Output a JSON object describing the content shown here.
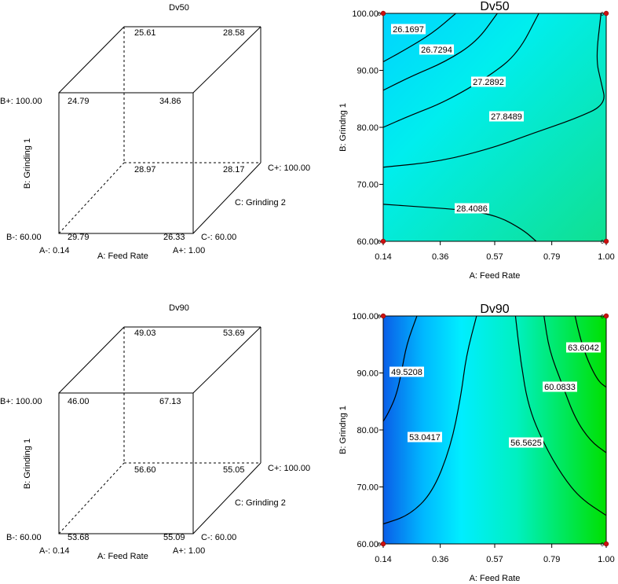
{
  "chart_data": [
    {
      "type": "cube",
      "title": "Dv50",
      "xlabel": "A: Feed Rate",
      "ylabel": "B: Grinding 1",
      "zlabel": "C: Grinding 2",
      "levels": {
        "a_minus": "A-: 0.14",
        "a_plus": "A+: 1.00",
        "b_minus": "B-: 60.00",
        "b_plus": "B+: 100.00",
        "c_minus": "C-: 60.00",
        "c_plus": "C+: 100.00"
      },
      "corners": {
        "a-b-c-": "29.79",
        "a+b-c-": "26.33",
        "a-b+c-": "24.79",
        "a+b+c-": "34.86",
        "a-b-c+": "28.97",
        "a+b-c+": "28.17",
        "a-b+c+": "25.61",
        "a+b+c+": "28.58"
      }
    },
    {
      "type": "contour",
      "title": "Dv50",
      "xlabel": "A: Feed Rate",
      "ylabel": "B: Grindng 1",
      "xticks": [
        "0.14",
        "0.36",
        "0.57",
        "0.79",
        "1.00"
      ],
      "yticks": [
        "60.00",
        "70.00",
        "80.00",
        "90.00",
        "100.00"
      ],
      "xlim": [
        0.14,
        1.0
      ],
      "ylim": [
        60,
        100
      ],
      "design_point_label": "6",
      "colors": {
        "low": "#00d8ff",
        "high": "#10e090"
      },
      "contours": [
        {
          "label": "26.1697",
          "points": [
            [
              0.42,
              100
            ],
            [
              0.33,
              96.5
            ],
            [
              0.22,
              93.5
            ],
            [
              0.14,
              91.5
            ]
          ]
        },
        {
          "label": "26.7294",
          "points": [
            [
              0.58,
              100
            ],
            [
              0.5,
              95
            ],
            [
              0.38,
              91.5
            ],
            [
              0.25,
              89
            ],
            [
              0.14,
              86.5
            ]
          ]
        },
        {
          "label": "27.2892",
          "points": [
            [
              0.74,
              100
            ],
            [
              0.66,
              93
            ],
            [
              0.55,
              89
            ],
            [
              0.38,
              84.5
            ],
            [
              0.24,
              82
            ],
            [
              0.14,
              80
            ]
          ]
        },
        {
          "label": "27.8489",
          "points": [
            [
              0.98,
              100
            ],
            [
              0.96,
              92
            ],
            [
              0.98,
              88
            ],
            [
              1.0,
              84
            ],
            [
              0.88,
              81.5
            ],
            [
              0.72,
              79
            ],
            [
              0.57,
              76.5
            ],
            [
              0.36,
              74
            ],
            [
              0.14,
              73
            ]
          ]
        },
        {
          "label": "28.4086",
          "points": [
            [
              0.14,
              66.5
            ],
            [
              0.3,
              66
            ],
            [
              0.45,
              65.5
            ],
            [
              0.58,
              64.5
            ],
            [
              0.68,
              62
            ],
            [
              0.73,
              60
            ]
          ]
        }
      ]
    },
    {
      "type": "cube",
      "title": "Dv90",
      "xlabel": "A: Feed Rate",
      "ylabel": "B: Grinding 1",
      "zlabel": "C: Grinding 2",
      "levels": {
        "a_minus": "A-: 0.14",
        "a_plus": "A+: 1.00",
        "b_minus": "B-: 60.00",
        "b_plus": "B+: 100.00",
        "c_minus": "C-: 60.00",
        "c_plus": "C+: 100.00"
      },
      "corners": {
        "a-b-c-": "53.68",
        "a+b-c-": "55.09",
        "a-b+c-": "46.00",
        "a+b+c-": "67.13",
        "a-b-c+": "56.60",
        "a+b-c+": "55.05",
        "a-b+c+": "49.03",
        "a+b+c+": "53.69"
      }
    },
    {
      "type": "contour",
      "title": "Dv90",
      "xlabel": "A: Feed Rate",
      "ylabel": "B: Grindng 1",
      "xticks": [
        "0.14",
        "0.36",
        "0.57",
        "0.79",
        "1.00"
      ],
      "yticks": [
        "60.00",
        "70.00",
        "80.00",
        "90.00",
        "100.00"
      ],
      "xlim": [
        0.14,
        1.0
      ],
      "ylim": [
        60,
        100
      ],
      "design_point_label": "6",
      "colors": {
        "low": "#0a5ee8",
        "mid": "#00eeff",
        "high": "#00e000"
      },
      "contours": [
        {
          "label": "49.5208",
          "points": [
            [
              0.27,
              100
            ],
            [
              0.23,
              95
            ],
            [
              0.21,
              90
            ],
            [
              0.19,
              86
            ],
            [
              0.16,
              83
            ],
            [
              0.14,
              81.5
            ]
          ]
        },
        {
          "label": "53.0417",
          "points": [
            [
              0.5,
              100
            ],
            [
              0.46,
              93
            ],
            [
              0.44,
              86
            ],
            [
              0.4,
              77
            ],
            [
              0.33,
              69
            ],
            [
              0.24,
              65
            ],
            [
              0.14,
              63.5
            ]
          ]
        },
        {
          "label": "56.5625",
          "points": [
            [
              0.65,
              100
            ],
            [
              0.67,
              92
            ],
            [
              0.7,
              84
            ],
            [
              0.76,
              77.5
            ],
            [
              0.83,
              72
            ],
            [
              0.9,
              68
            ],
            [
              1.0,
              65
            ]
          ]
        },
        {
          "label": "60.0833",
          "points": [
            [
              0.76,
              100
            ],
            [
              0.78,
              94
            ],
            [
              0.83,
              88
            ],
            [
              0.88,
              82
            ],
            [
              0.94,
              78
            ],
            [
              1.0,
              76
            ]
          ]
        },
        {
          "label": "63.6042",
          "points": [
            [
              0.88,
              100
            ],
            [
              0.9,
              96
            ],
            [
              0.93,
              92
            ],
            [
              0.97,
              88.5
            ],
            [
              1.0,
              87.5
            ]
          ]
        }
      ]
    }
  ]
}
